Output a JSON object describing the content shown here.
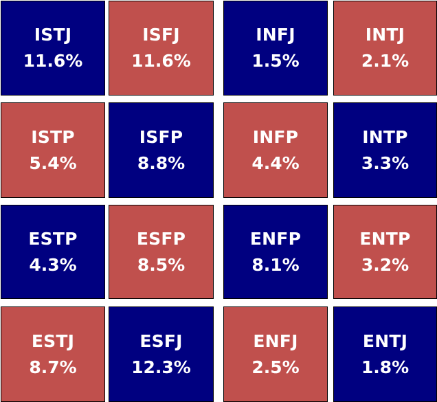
{
  "colors": {
    "navy": "#000080",
    "red": "#c0504d"
  },
  "tiles": [
    {
      "type": "ISTJ",
      "percent": "11.6%",
      "color": "navy"
    },
    {
      "type": "ISFJ",
      "percent": "11.6%",
      "color": "red"
    },
    {
      "type": "INFJ",
      "percent": "1.5%",
      "color": "navy"
    },
    {
      "type": "INTJ",
      "percent": "2.1%",
      "color": "red"
    },
    {
      "type": "ISTP",
      "percent": "5.4%",
      "color": "red"
    },
    {
      "type": "ISFP",
      "percent": "8.8%",
      "color": "navy"
    },
    {
      "type": "INFP",
      "percent": "4.4%",
      "color": "red"
    },
    {
      "type": "INTP",
      "percent": "3.3%",
      "color": "navy"
    },
    {
      "type": "ESTP",
      "percent": "4.3%",
      "color": "navy"
    },
    {
      "type": "ESFP",
      "percent": "8.5%",
      "color": "red"
    },
    {
      "type": "ENFP",
      "percent": "8.1%",
      "color": "navy"
    },
    {
      "type": "ENTP",
      "percent": "3.2%",
      "color": "red"
    },
    {
      "type": "ESTJ",
      "percent": "8.7%",
      "color": "red"
    },
    {
      "type": "ESFJ",
      "percent": "12.3%",
      "color": "navy"
    },
    {
      "type": "ENFJ",
      "percent": "2.5%",
      "color": "red"
    },
    {
      "type": "ENTJ",
      "percent": "1.8%",
      "color": "navy"
    }
  ]
}
